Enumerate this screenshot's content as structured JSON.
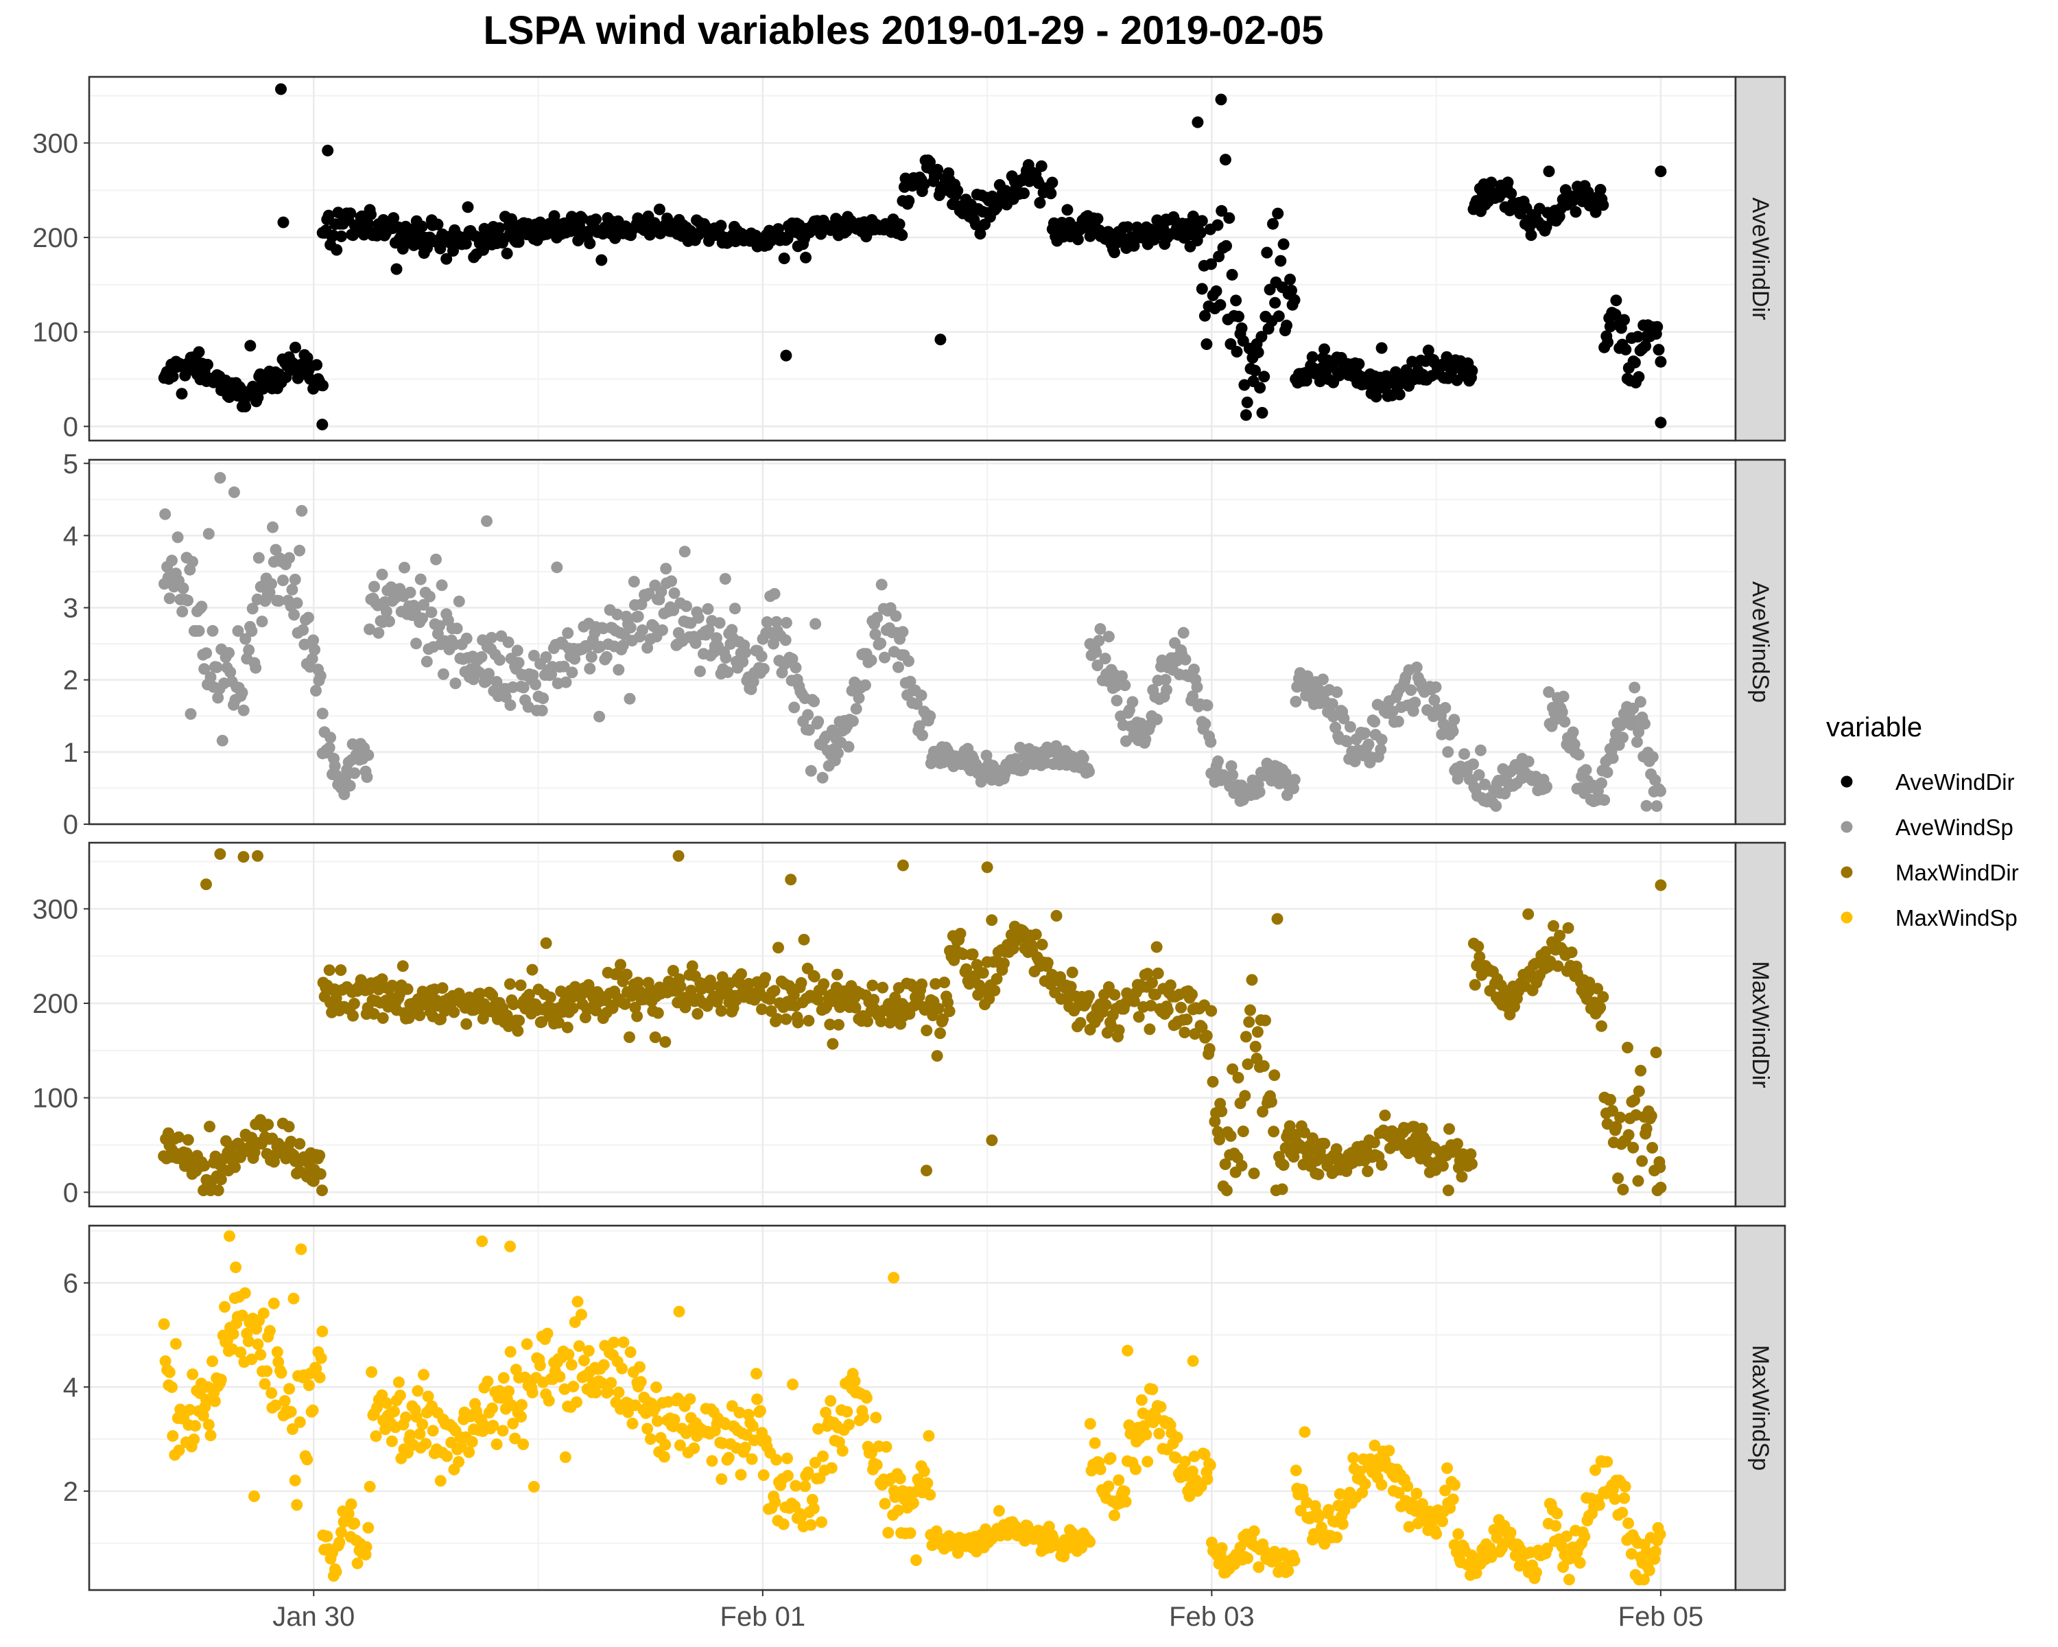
{
  "chart_data": {
    "type": "scatter",
    "title": "LSPA wind variables 2019-01-29 - 2019-02-05",
    "xlabel": "",
    "ylabel": "",
    "x_axis": {
      "type": "date",
      "range": [
        "2019-01-29T00:00",
        "2019-02-05T08:00"
      ],
      "ticks": [
        {
          "value": "2019-01-30T00:00",
          "label": "Jan 30"
        },
        {
          "value": "2019-02-01T00:00",
          "label": "Feb 01"
        },
        {
          "value": "2019-02-03T00:00",
          "label": "Feb 03"
        },
        {
          "value": "2019-02-05T00:00",
          "label": "Feb 05"
        }
      ]
    },
    "grid": true,
    "legend": {
      "title": "variable",
      "placement": "right",
      "entries": [
        {
          "name": "AveWindDir",
          "color": "#000000"
        },
        {
          "name": "AveWindSp",
          "color": "#999999"
        },
        {
          "name": "MaxWindDir",
          "color": "#997300"
        },
        {
          "name": "MaxWindSp",
          "color": "#ffbf00"
        }
      ]
    },
    "facets": [
      {
        "name": "AveWindDir",
        "color": "#000000",
        "ylim": [
          -15,
          370
        ],
        "yticks": [
          0,
          100,
          200,
          300
        ],
        "segments": [
          {
            "from": "2019-01-29T08:00",
            "to": "2019-01-30T01:00",
            "base": 50,
            "amp": 15,
            "noise": 12,
            "outlier_rate": 0.05
          },
          {
            "from": "2019-01-30T01:00",
            "to": "2019-01-31T06:00",
            "base": 203,
            "amp": 8,
            "noise": 14,
            "outlier_rate": 0.03
          },
          {
            "from": "2019-01-31T06:00",
            "to": "2019-02-01T15:00",
            "base": 205,
            "amp": 6,
            "noise": 10,
            "outlier_rate": 0.02
          },
          {
            "from": "2019-02-01T15:00",
            "to": "2019-02-02T07:00",
            "base": 245,
            "amp": 20,
            "noise": 18,
            "outlier_rate": 0.04
          },
          {
            "from": "2019-02-02T07:00",
            "to": "2019-02-02T23:00",
            "base": 205,
            "amp": 8,
            "noise": 12,
            "outlier_rate": 0.05
          },
          {
            "from": "2019-02-02T23:00",
            "to": "2019-02-03T09:00",
            "base": 110,
            "amp": 60,
            "noise": 70,
            "outlier_rate": 0.1
          },
          {
            "from": "2019-02-03T09:00",
            "to": "2019-02-04T04:00",
            "base": 55,
            "amp": 10,
            "noise": 12,
            "outlier_rate": 0.05
          },
          {
            "from": "2019-02-04T04:00",
            "to": "2019-02-04T18:00",
            "base": 232,
            "amp": 15,
            "noise": 14,
            "outlier_rate": 0.06
          },
          {
            "from": "2019-02-04T18:00",
            "to": "2019-02-05T00:00",
            "base": 85,
            "amp": 20,
            "noise": 25,
            "outlier_rate": 0.15
          }
        ],
        "points_extra": [
          {
            "x": "2019-01-29T20:30",
            "y": 357
          },
          {
            "x": "2019-01-29T20:45",
            "y": 216
          },
          {
            "x": "2019-01-30T01:30",
            "y": 292
          },
          {
            "x": "2019-01-30T00:55",
            "y": 2
          },
          {
            "x": "2019-02-01T02:30",
            "y": 75
          },
          {
            "x": "2019-02-01T19:00",
            "y": 92
          },
          {
            "x": "2019-02-03T01:00",
            "y": 346
          },
          {
            "x": "2019-02-02T22:30",
            "y": 322
          },
          {
            "x": "2019-02-05T00:00",
            "y": 270
          },
          {
            "x": "2019-02-05T00:00",
            "y": 4
          }
        ]
      },
      {
        "name": "AveWindSp",
        "color": "#999999",
        "ylim": [
          0,
          5.05
        ],
        "yticks": [
          0,
          1,
          2,
          3,
          4,
          5
        ],
        "segments": [
          {
            "from": "2019-01-29T08:00",
            "to": "2019-01-30T01:00",
            "base": 2.7,
            "amp": 0.8,
            "noise": 0.55,
            "outlier_rate": 0.05
          },
          {
            "from": "2019-01-30T01:00",
            "to": "2019-01-30T06:00",
            "base": 0.8,
            "amp": 0.3,
            "noise": 0.25,
            "outlier_rate": 0.03
          },
          {
            "from": "2019-01-30T06:00",
            "to": "2019-02-01T00:00",
            "base": 2.5,
            "amp": 0.5,
            "noise": 0.45,
            "outlier_rate": 0.04
          },
          {
            "from": "2019-02-01T00:00",
            "to": "2019-02-01T18:00",
            "base": 1.8,
            "amp": 0.8,
            "noise": 0.45,
            "outlier_rate": 0.03
          },
          {
            "from": "2019-02-01T18:00",
            "to": "2019-02-02T11:00",
            "base": 0.85,
            "amp": 0.1,
            "noise": 0.15,
            "outlier_rate": 0.02
          },
          {
            "from": "2019-02-02T11:00",
            "to": "2019-02-03T00:00",
            "base": 1.8,
            "amp": 0.5,
            "noise": 0.3,
            "outlier_rate": 0.02
          },
          {
            "from": "2019-02-03T00:00",
            "to": "2019-02-03T09:00",
            "base": 0.6,
            "amp": 0.15,
            "noise": 0.15,
            "outlier_rate": 0.02
          },
          {
            "from": "2019-02-03T09:00",
            "to": "2019-02-04T02:00",
            "base": 1.5,
            "amp": 0.4,
            "noise": 0.3,
            "outlier_rate": 0.02
          },
          {
            "from": "2019-02-04T02:00",
            "to": "2019-02-04T12:00",
            "base": 0.6,
            "amp": 0.2,
            "noise": 0.18,
            "outlier_rate": 0.02
          },
          {
            "from": "2019-02-04T12:00",
            "to": "2019-02-05T00:00",
            "base": 1.0,
            "amp": 0.6,
            "noise": 0.35,
            "outlier_rate": 0.02
          }
        ],
        "points_extra": [
          {
            "x": "2019-01-29T14:00",
            "y": 4.8
          },
          {
            "x": "2019-01-29T15:30",
            "y": 4.6
          },
          {
            "x": "2019-01-30T18:30",
            "y": 4.2
          },
          {
            "x": "2019-01-31T20:00",
            "y": 3.4
          },
          {
            "x": "2019-02-02T13:00",
            "y": 2.6
          }
        ]
      },
      {
        "name": "MaxWindDir",
        "color": "#997300",
        "ylim": [
          -15,
          370
        ],
        "yticks": [
          0,
          100,
          200,
          300
        ],
        "segments": [
          {
            "from": "2019-01-29T08:00",
            "to": "2019-01-30T01:00",
            "base": 38,
            "amp": 15,
            "noise": 18,
            "outlier_rate": 0.05
          },
          {
            "from": "2019-01-30T01:00",
            "to": "2019-02-01T20:00",
            "base": 205,
            "amp": 8,
            "noise": 22,
            "outlier_rate": 0.04
          },
          {
            "from": "2019-02-01T20:00",
            "to": "2019-02-02T08:00",
            "base": 245,
            "amp": 25,
            "noise": 20,
            "outlier_rate": 0.04
          },
          {
            "from": "2019-02-02T08:00",
            "to": "2019-02-02T23:00",
            "base": 200,
            "amp": 10,
            "noise": 20,
            "outlier_rate": 0.05
          },
          {
            "from": "2019-02-02T23:00",
            "to": "2019-02-03T08:00",
            "base": 110,
            "amp": 70,
            "noise": 60,
            "outlier_rate": 0.15
          },
          {
            "from": "2019-02-03T08:00",
            "to": "2019-02-04T04:00",
            "base": 45,
            "amp": 12,
            "noise": 18,
            "outlier_rate": 0.05
          },
          {
            "from": "2019-02-04T04:00",
            "to": "2019-02-04T18:00",
            "base": 230,
            "amp": 25,
            "noise": 22,
            "outlier_rate": 0.05
          },
          {
            "from": "2019-02-04T18:00",
            "to": "2019-02-05T00:00",
            "base": 70,
            "amp": 25,
            "noise": 30,
            "outlier_rate": 0.15
          }
        ],
        "points_extra": [
          {
            "x": "2019-01-29T14:00",
            "y": 358
          },
          {
            "x": "2019-01-29T16:30",
            "y": 355
          },
          {
            "x": "2019-01-29T18:00",
            "y": 356
          },
          {
            "x": "2019-01-29T12:30",
            "y": 326
          },
          {
            "x": "2019-01-31T15:00",
            "y": 356
          },
          {
            "x": "2019-02-01T03:00",
            "y": 331
          },
          {
            "x": "2019-02-01T15:00",
            "y": 346
          },
          {
            "x": "2019-02-02T00:00",
            "y": 344
          },
          {
            "x": "2019-02-01T17:30",
            "y": 23
          },
          {
            "x": "2019-02-02T00:30",
            "y": 55
          },
          {
            "x": "2019-02-05T00:00",
            "y": 325
          },
          {
            "x": "2019-02-05T00:00",
            "y": 5
          }
        ]
      },
      {
        "name": "MaxWindSp",
        "color": "#ffbf00",
        "ylim": [
          0.1,
          7.1
        ],
        "yticks": [
          2,
          4,
          6
        ],
        "segments": [
          {
            "from": "2019-01-29T08:00",
            "to": "2019-01-30T01:00",
            "base": 4.3,
            "amp": 1.0,
            "noise": 0.9,
            "outlier_rate": 0.05
          },
          {
            "from": "2019-01-30T01:00",
            "to": "2019-01-30T06:00",
            "base": 1.2,
            "amp": 0.4,
            "noise": 0.4,
            "outlier_rate": 0.03
          },
          {
            "from": "2019-01-30T06:00",
            "to": "2019-02-01T00:00",
            "base": 3.8,
            "amp": 0.7,
            "noise": 0.7,
            "outlier_rate": 0.04
          },
          {
            "from": "2019-02-01T00:00",
            "to": "2019-02-01T18:00",
            "base": 2.7,
            "amp": 1.0,
            "noise": 0.7,
            "outlier_rate": 0.03
          },
          {
            "from": "2019-02-01T18:00",
            "to": "2019-02-02T11:00",
            "base": 1.1,
            "amp": 0.15,
            "noise": 0.2,
            "outlier_rate": 0.02
          },
          {
            "from": "2019-02-02T11:00",
            "to": "2019-02-03T00:00",
            "base": 2.8,
            "amp": 0.8,
            "noise": 0.5,
            "outlier_rate": 0.03
          },
          {
            "from": "2019-02-03T00:00",
            "to": "2019-02-03T09:00",
            "base": 0.8,
            "amp": 0.2,
            "noise": 0.2,
            "outlier_rate": 0.02
          },
          {
            "from": "2019-02-03T09:00",
            "to": "2019-02-04T02:00",
            "base": 2.0,
            "amp": 0.6,
            "noise": 0.4,
            "outlier_rate": 0.02
          },
          {
            "from": "2019-02-04T02:00",
            "to": "2019-02-04T12:00",
            "base": 0.9,
            "amp": 0.3,
            "noise": 0.25,
            "outlier_rate": 0.02
          },
          {
            "from": "2019-02-04T12:00",
            "to": "2019-02-05T00:00",
            "base": 1.5,
            "amp": 0.8,
            "noise": 0.45,
            "outlier_rate": 0.02
          }
        ],
        "points_extra": [
          {
            "x": "2019-01-29T15:00",
            "y": 6.9
          },
          {
            "x": "2019-01-29T15:40",
            "y": 6.3
          },
          {
            "x": "2019-01-30T18:00",
            "y": 6.8
          },
          {
            "x": "2019-01-30T21:00",
            "y": 6.7
          },
          {
            "x": "2019-02-01T14:00",
            "y": 6.1
          },
          {
            "x": "2019-02-02T15:00",
            "y": 4.7
          },
          {
            "x": "2019-02-02T22:00",
            "y": 4.5
          }
        ]
      }
    ]
  }
}
